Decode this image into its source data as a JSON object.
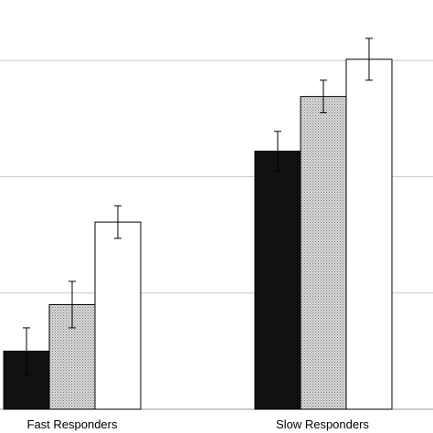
{
  "chart_data": {
    "type": "bar",
    "categories": [
      "Fast Responders",
      "Slow Responders"
    ],
    "series": [
      {
        "fill": "solid-black",
        "values": [
          0.73,
          2.45
        ],
        "error": [
          0.2,
          0.17
        ]
      },
      {
        "fill": "dotted-gray",
        "values": [
          1.13,
          2.92
        ],
        "error": [
          0.2,
          0.14
        ]
      },
      {
        "fill": "white",
        "values": [
          1.84,
          3.24
        ],
        "error": [
          0.14,
          0.18
        ]
      }
    ],
    "ylim": [
      0.23,
      3.75
    ],
    "gridlines": [
      0.23,
      1.23,
      2.23,
      3.23
    ],
    "grid": true,
    "legend": "none",
    "colors": {
      "black": "#111111",
      "gray": "#cfcfcf",
      "white": "#ffffff",
      "grid": "#c8c8c8",
      "axis": "#999999"
    }
  }
}
